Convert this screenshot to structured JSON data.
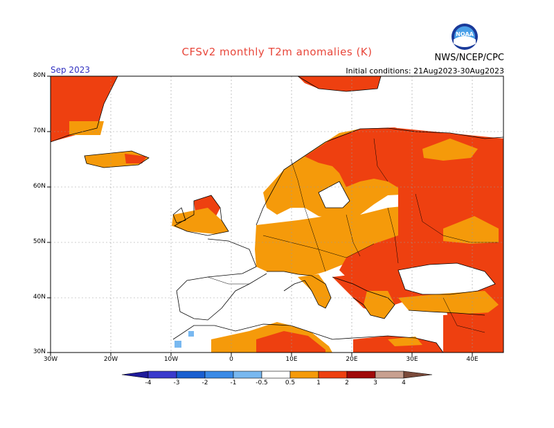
{
  "header": {
    "title": "CFSv2 monthly T2m anomalies (K)",
    "agency": "NWS/NCEP/CPC",
    "logo_text": "NOAA",
    "month": "Sep 2023",
    "initial_conditions": "Initial conditions: 21Aug2023-30Aug2023"
  },
  "axes": {
    "lat_labels": [
      "80N",
      "70N",
      "60N",
      "50N",
      "40N",
      "30N"
    ],
    "lon_labels": [
      "30W",
      "20W",
      "10W",
      "0",
      "10E",
      "20E",
      "30E",
      "40E"
    ]
  },
  "colorbar": {
    "labels": [
      "-4",
      "-3",
      "-2",
      "-1",
      "-0.5",
      "0.5",
      "1",
      "2",
      "3",
      "4"
    ],
    "colors": [
      "#1e1a9a",
      "#3a3acc",
      "#1a5fd0",
      "#3a8ae6",
      "#78b8f0",
      "#ffffff",
      "#f59a0a",
      "#ee4010",
      "#a00a0a",
      "#c8a090",
      "#7a4a3a"
    ]
  },
  "colors": {
    "orange": "#f59a0a",
    "red_orange": "#ee4010",
    "light_blue": "#78b8f0",
    "title_red": "#e8463a",
    "month_blue": "#3030c0"
  }
}
